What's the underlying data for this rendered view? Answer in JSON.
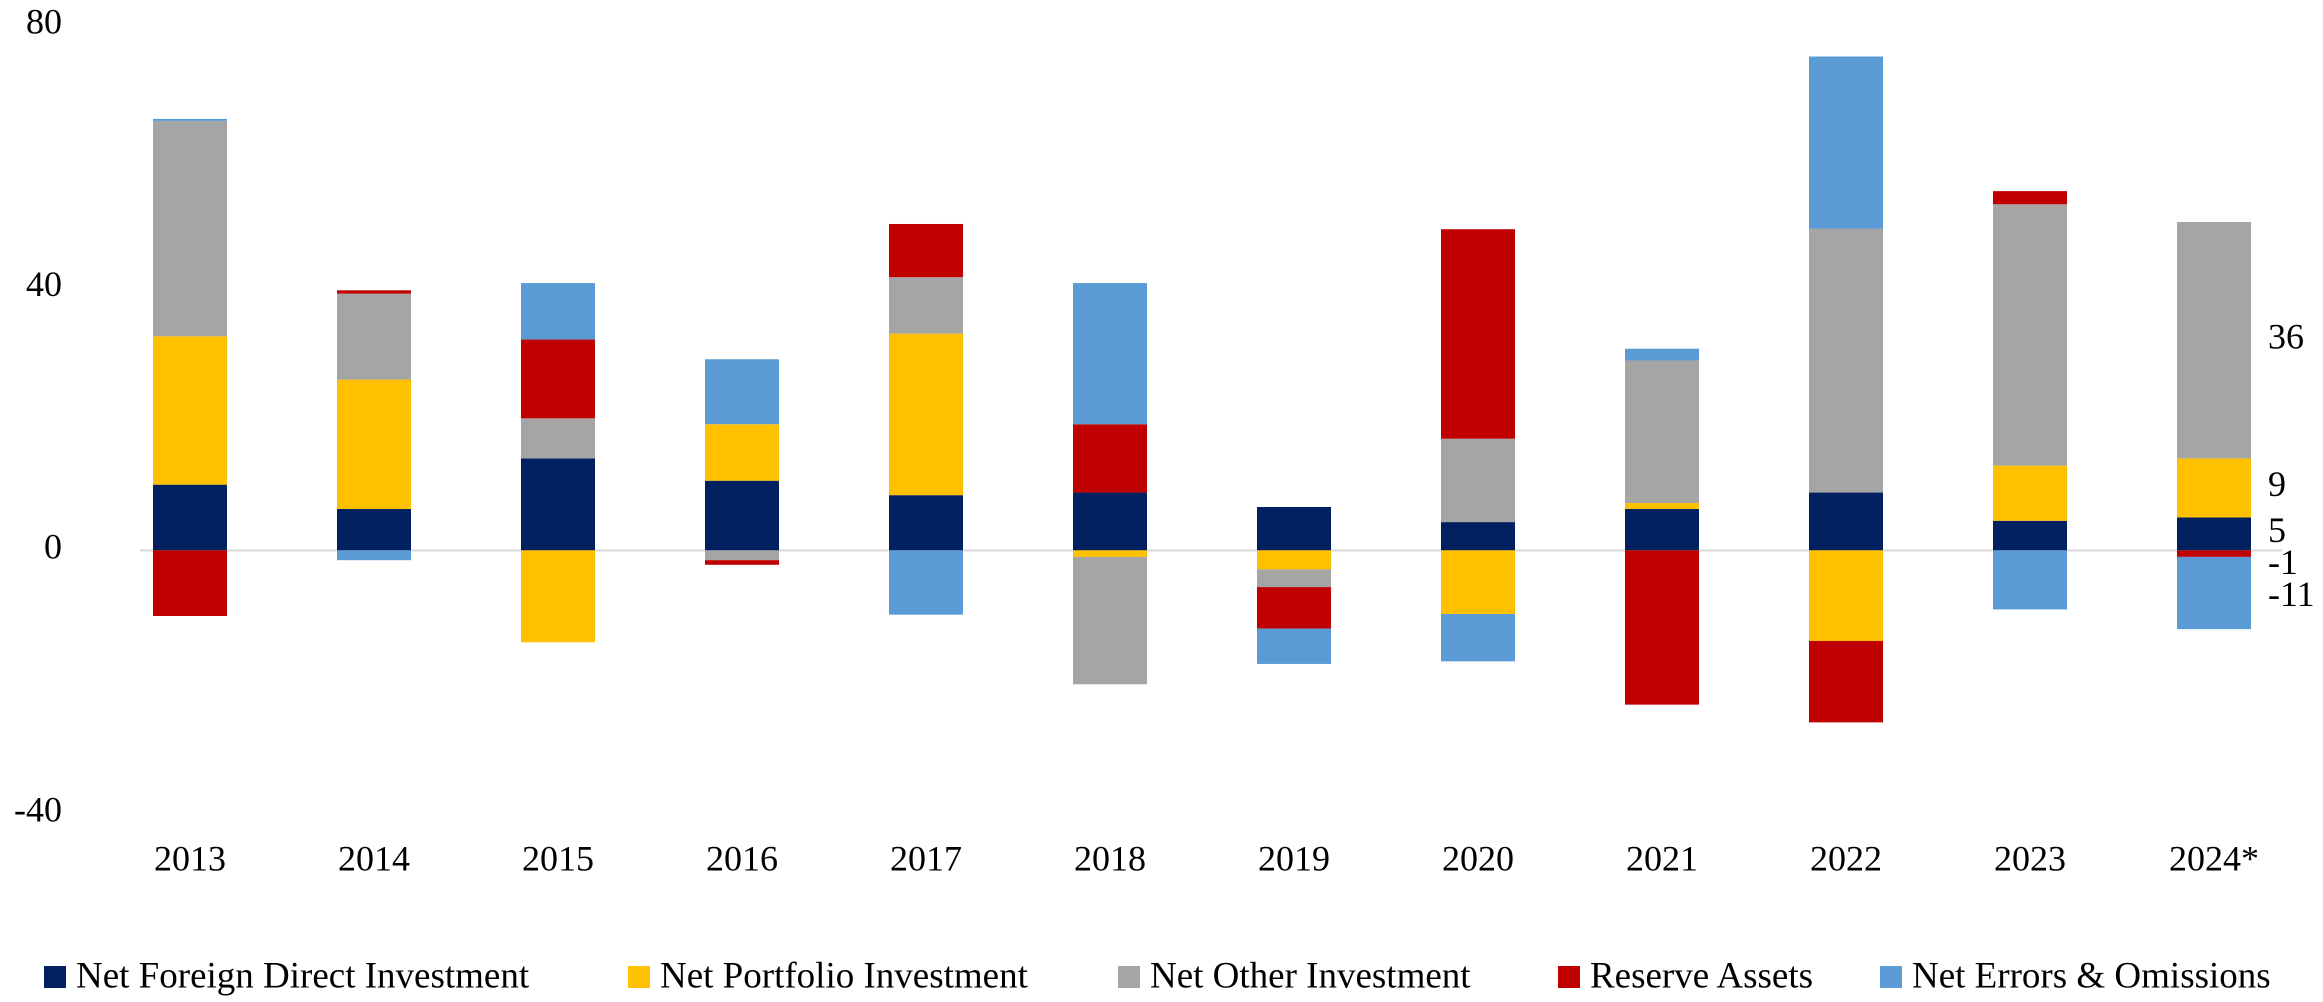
{
  "chart_data": {
    "type": "stacked_bar",
    "categories": [
      "2013",
      "2014",
      "2015",
      "2016",
      "2017",
      "2018",
      "2019",
      "2020",
      "2021",
      "2022",
      "2023",
      "2024*"
    ],
    "series": [
      {
        "name": "Net Foreign Direct Investment",
        "color": "#002060",
        "values": [
          10,
          6.3,
          14,
          10.6,
          8.4,
          8.8,
          6.6,
          4.3,
          6.3,
          8.8,
          4.5,
          5
        ]
      },
      {
        "name": "Net Portfolio Investment",
        "color": "#ffc000",
        "values": [
          22.6,
          19.7,
          -14,
          8.6,
          24.6,
          -1,
          -2.9,
          -9.7,
          0.9,
          -13.8,
          8.4,
          9
        ]
      },
      {
        "name": "Net Other Investment",
        "color": "#a5a5a5",
        "values": [
          32.8,
          13.1,
          6.1,
          -1.5,
          8.6,
          -19.4,
          -2.7,
          12.7,
          21.7,
          40.2,
          39.8,
          36
        ]
      },
      {
        "name": "Reserve Assets",
        "color": "#c00000",
        "values": [
          -10,
          0.5,
          12,
          -0.7,
          8.1,
          10.4,
          -6.3,
          31.9,
          -23.5,
          -12.4,
          2,
          -1
        ]
      },
      {
        "name": "Net Errors & Omissions",
        "color": "#5b9bd5",
        "values": [
          0.3,
          -1.5,
          8.6,
          9.9,
          -9.8,
          21.5,
          -5.4,
          -7.2,
          1.8,
          26.2,
          -9,
          -11
        ]
      }
    ],
    "ylim": [
      -40,
      80
    ],
    "yticks": [
      -40,
      0,
      40,
      80
    ],
    "grid": false,
    "legend": "bottom"
  }
}
